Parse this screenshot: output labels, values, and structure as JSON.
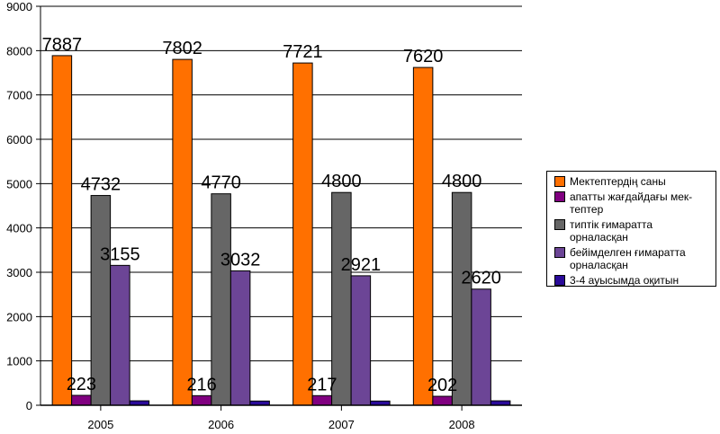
{
  "chart_data": {
    "type": "bar",
    "categories": [
      "2005",
      "2006",
      "2007",
      "2008"
    ],
    "ylim": [
      0,
      9000
    ],
    "yticks": [
      0,
      1000,
      2000,
      3000,
      4000,
      5000,
      6000,
      7000,
      8000,
      9000
    ],
    "grid": true,
    "legend_position": "right",
    "series": [
      {
        "name": "Мектептердің саны",
        "color": "#ff7000",
        "values": [
          7887,
          7802,
          7721,
          7620
        ],
        "labels": [
          "7887",
          "7802",
          "7721",
          "7620"
        ]
      },
      {
        "name": "апатты жағдайдағы мек-\nтептер",
        "color": "#800080",
        "values": [
          223,
          216,
          217,
          202
        ],
        "labels": [
          "223",
          "216",
          "217",
          "202"
        ]
      },
      {
        "name": "типтік ғимаратта орналасқан",
        "color": "#666666",
        "values": [
          4732,
          4770,
          4800,
          4800
        ],
        "labels": [
          "4732",
          "4770",
          "4800",
          "4800"
        ]
      },
      {
        "name": "бейімделген ғимаратта орналасқан",
        "color": "#6c4596",
        "values": [
          3155,
          3032,
          2921,
          2620
        ],
        "labels": [
          "3155",
          "3032",
          "2921",
          "2620"
        ]
      },
      {
        "name": "3-4 ауысымда оқитын",
        "color": "#2a0a99",
        "values": [
          100,
          95,
          95,
          100
        ],
        "labels": []
      }
    ]
  }
}
